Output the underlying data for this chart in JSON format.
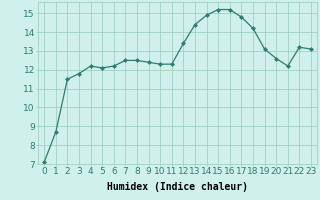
{
  "x": [
    0,
    1,
    2,
    3,
    4,
    5,
    6,
    7,
    8,
    9,
    10,
    11,
    12,
    13,
    14,
    15,
    16,
    17,
    18,
    19,
    20,
    21,
    22,
    23
  ],
  "y": [
    7.1,
    8.7,
    11.5,
    11.8,
    12.2,
    12.1,
    12.2,
    12.5,
    12.5,
    12.4,
    12.3,
    12.3,
    13.4,
    14.4,
    14.9,
    15.2,
    15.2,
    14.8,
    14.2,
    13.1,
    12.6,
    12.2,
    13.2,
    13.1
  ],
  "line_color": "#2e7d6e",
  "marker": "D",
  "marker_size": 2,
  "bg_color": "#cff0eb",
  "grid_color": "#99ccbb",
  "xlabel": "Humidex (Indice chaleur)",
  "xlim": [
    -0.5,
    23.5
  ],
  "ylim": [
    7,
    15.6
  ],
  "yticks": [
    7,
    8,
    9,
    10,
    11,
    12,
    13,
    14,
    15
  ],
  "xticks": [
    0,
    1,
    2,
    3,
    4,
    5,
    6,
    7,
    8,
    9,
    10,
    11,
    12,
    13,
    14,
    15,
    16,
    17,
    18,
    19,
    20,
    21,
    22,
    23
  ],
  "xlabel_fontsize": 7,
  "tick_fontsize": 6.5,
  "linewidth": 0.9
}
